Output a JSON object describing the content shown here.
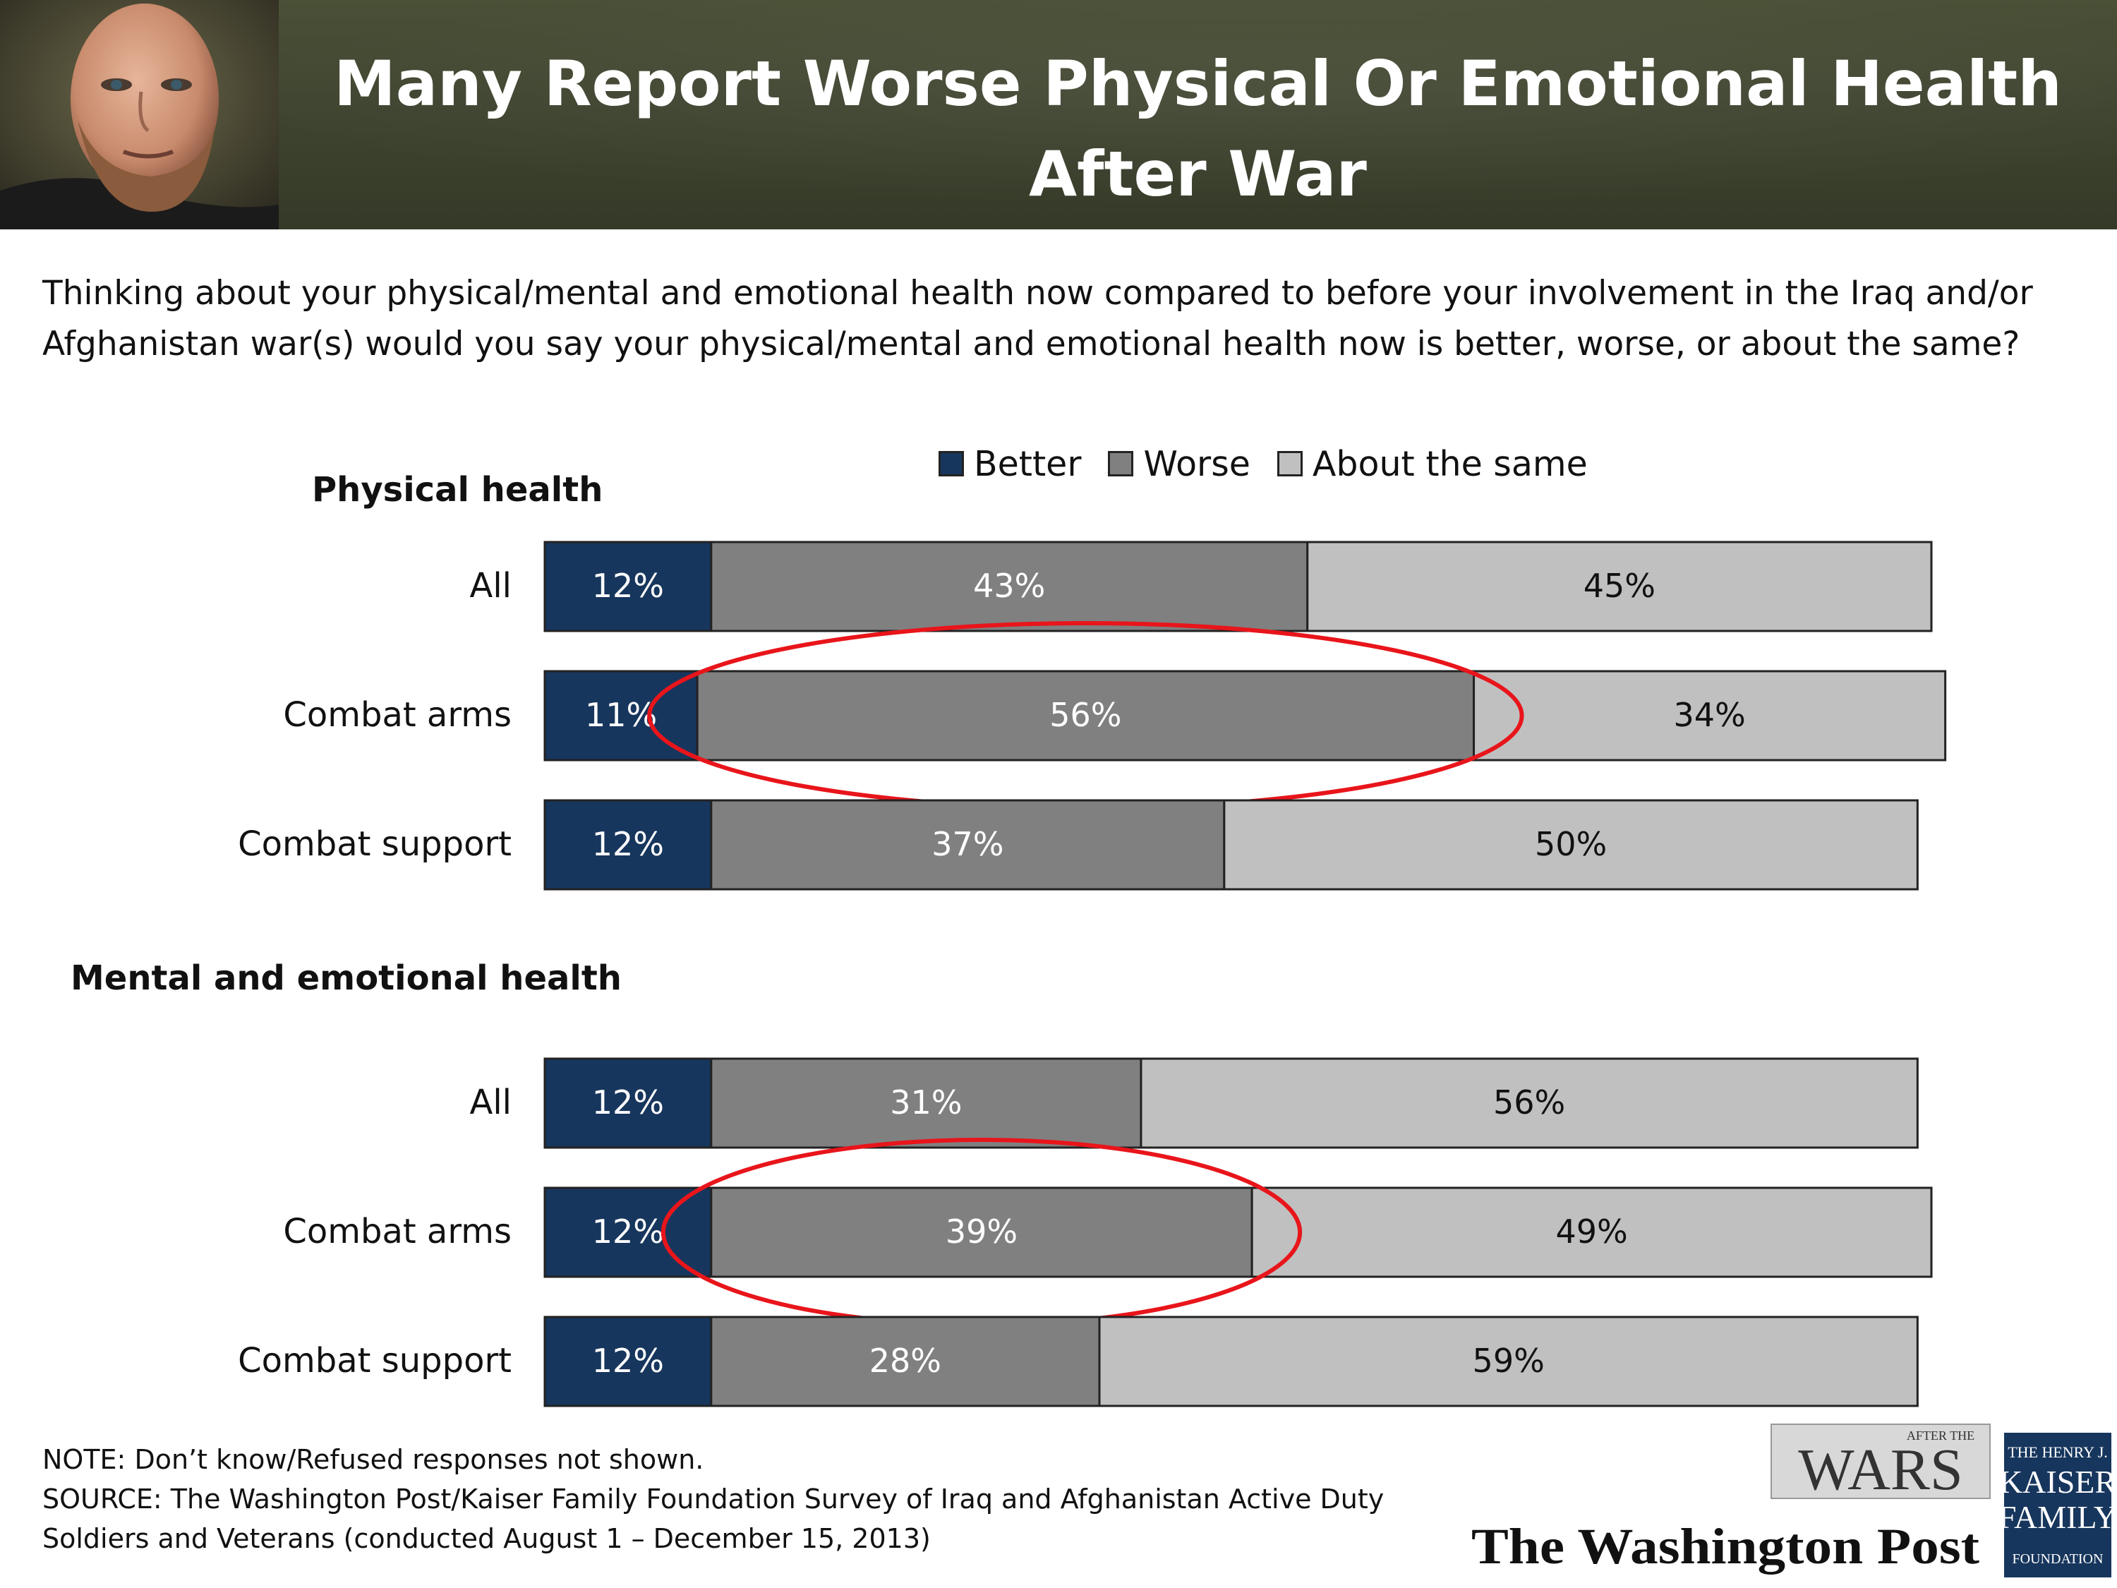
{
  "header": {
    "title_line1": "Many Report Worse Physical Or Emotional Health",
    "title_line2": "After War"
  },
  "question": "Thinking about your physical/mental and emotional health now compared to before your involvement in the Iraq and/or Afghanistan war(s) would you say your physical/mental and emotional health now is better, worse, or about the same?",
  "legend": {
    "better": "Better",
    "worse": "Worse",
    "same": "About the same"
  },
  "colors": {
    "better": "#17365d",
    "worse": "#808080",
    "same": "#c0c0c0",
    "highlight": "#e8151b"
  },
  "chart_data": {
    "type": "bar",
    "orientation": "horizontal",
    "stacked": true,
    "unit": "%",
    "series_names": [
      "Better",
      "Worse",
      "About the same"
    ],
    "groups": [
      {
        "title": "Physical health",
        "rows": [
          {
            "label": "All",
            "values": [
              12,
              43,
              45
            ],
            "highlight": false
          },
          {
            "label": "Combat arms",
            "values": [
              11,
              56,
              34
            ],
            "highlight": true
          },
          {
            "label": "Combat support",
            "values": [
              12,
              37,
              50
            ],
            "highlight": false
          }
        ]
      },
      {
        "title": "Mental and emotional health",
        "rows": [
          {
            "label": "All",
            "values": [
              12,
              31,
              56
            ],
            "highlight": false
          },
          {
            "label": "Combat arms",
            "values": [
              12,
              39,
              49
            ],
            "highlight": true
          },
          {
            "label": "Combat support",
            "values": [
              12,
              28,
              59
            ],
            "highlight": false
          }
        ]
      }
    ]
  },
  "notes": {
    "note": "NOTE: Don’t know/Refused responses not shown.",
    "source_line1": "SOURCE: The Washington Post/Kaiser Family Foundation Survey of Iraq and Afghanistan Active Duty",
    "source_line2": "Soldiers and Veterans (conducted August 1 – December 15, 2013)"
  },
  "logos": {
    "wars_small": "AFTER THE",
    "wars": "WARS",
    "washington_post": "The Washington Post",
    "kff_line1": "THE HENRY J.",
    "kff_line2": "KAISER",
    "kff_line3": "FAMILY",
    "kff_line4": "FOUNDATION"
  }
}
